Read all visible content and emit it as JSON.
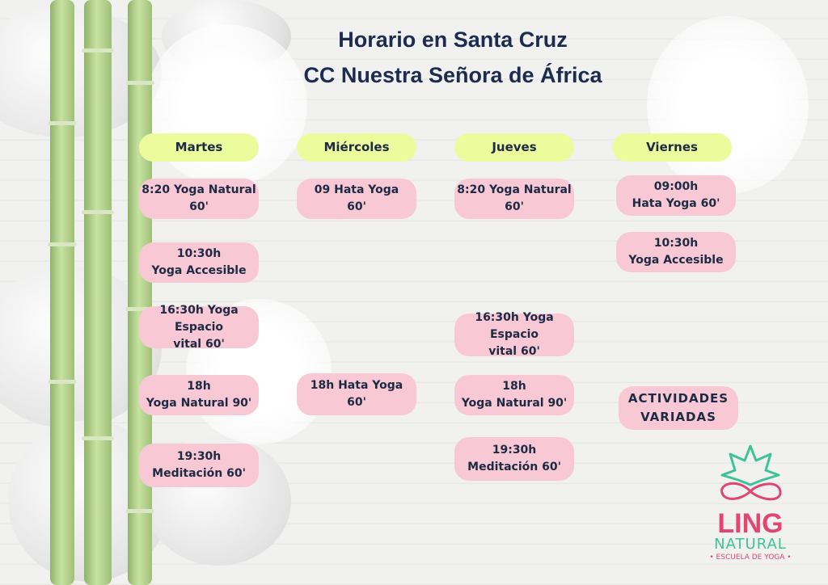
{
  "title": {
    "line1": "Horario en Santa Cruz",
    "line2": "CC Nuestra Señora de África"
  },
  "days": [
    "Martes",
    "Miércoles",
    "Jueves",
    "Viernes"
  ],
  "martes": [
    "8:20 Yoga Natural\n60'",
    "10:30h\nYoga Accesible",
    "16:30h Yoga Espacio\nvital  60'",
    "18h\nYoga Natural 90'",
    "19:30h\nMeditación 60'"
  ],
  "miercoles": [
    "09 Hata Yoga\n60'",
    "18h Hata Yoga\n60'"
  ],
  "jueves": [
    "8:20 Yoga Natural\n60'",
    "16:30h Yoga Espacio\nvital  60'",
    "18h\nYoga Natural 90'",
    "19:30h\nMeditación 60'"
  ],
  "viernes": [
    "09:00h\nHata Yoga 60'",
    "10:30h\nYoga Accesible",
    "ACTIVIDADES\nVARIADAS"
  ],
  "logo": {
    "name1": "LING",
    "name2": "NATURAL",
    "tagline": "• ESCUELA DE YOGA •"
  },
  "colors": {
    "header": "#ecfb9c",
    "class": "#f8c9d5",
    "text": "#1c2a44",
    "logo_pink": "#e0466f",
    "logo_green": "#3cc39a"
  }
}
